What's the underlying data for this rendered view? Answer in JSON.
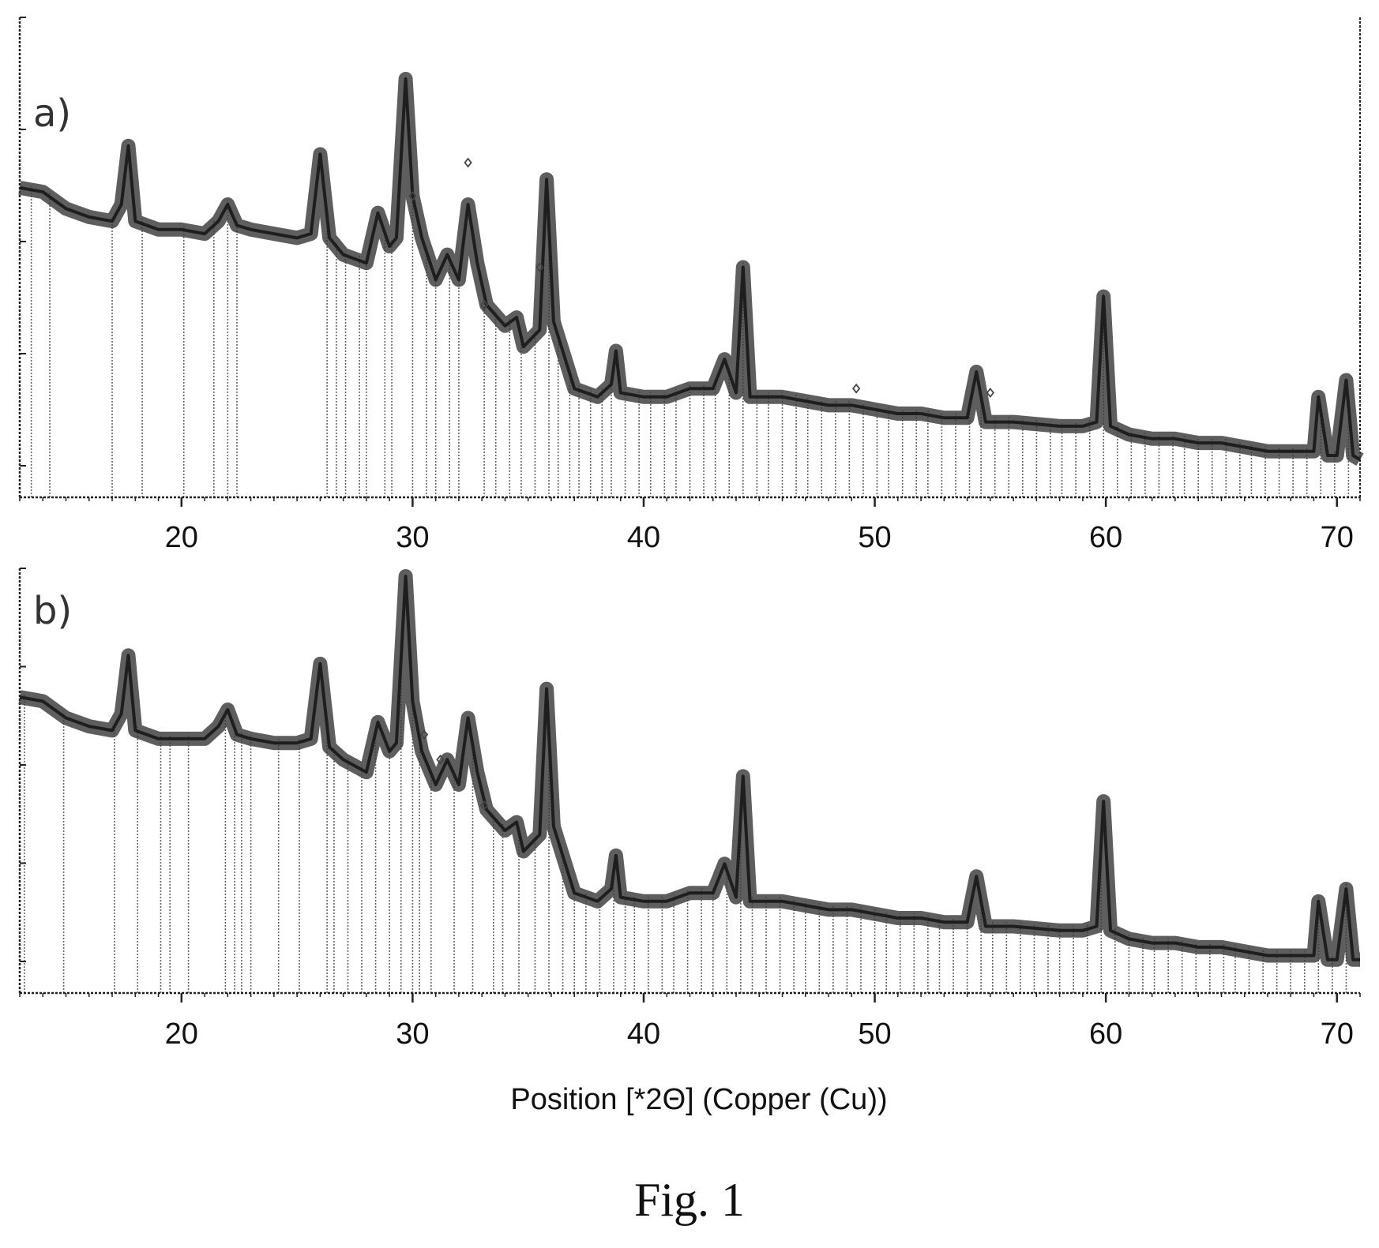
{
  "figure": {
    "caption": "Fig. 1",
    "xlabel": "Position [*2Θ] (Copper (Cu))",
    "colors": {
      "trace": "#3a3a3a",
      "ref_line": "#666666",
      "axis": "#222222",
      "marker": "#444444"
    }
  },
  "chart_data": [
    {
      "type": "line",
      "panel_label": "a)",
      "xlabel": "",
      "ylabel": "",
      "xlim": [
        13,
        71
      ],
      "ylim": [
        0,
        100
      ],
      "xticks": [
        20,
        30,
        40,
        50,
        60,
        70
      ],
      "tick_labels": [
        "20",
        "30",
        "40",
        "50",
        "60",
        "70"
      ],
      "grid": false,
      "series": [
        {
          "points": [
            [
              13.0,
              74
            ],
            [
              14.0,
              73
            ],
            [
              15.0,
              69
            ],
            [
              16.0,
              67
            ],
            [
              17.0,
              66
            ],
            [
              17.4,
              70
            ],
            [
              17.7,
              84
            ],
            [
              18.0,
              66
            ],
            [
              19.0,
              64
            ],
            [
              20.0,
              64
            ],
            [
              21.0,
              63
            ],
            [
              21.6,
              66
            ],
            [
              22.0,
              70
            ],
            [
              22.4,
              65
            ],
            [
              23.0,
              64
            ],
            [
              24.0,
              63
            ],
            [
              25.0,
              62
            ],
            [
              25.6,
              63
            ],
            [
              26.0,
              82
            ],
            [
              26.4,
              62
            ],
            [
              27.0,
              58
            ],
            [
              28.0,
              56
            ],
            [
              28.5,
              68
            ],
            [
              29.0,
              60
            ],
            [
              29.3,
              62
            ],
            [
              29.7,
              100
            ],
            [
              30.0,
              72
            ],
            [
              30.4,
              62
            ],
            [
              31.0,
              52
            ],
            [
              31.5,
              58
            ],
            [
              32.0,
              52
            ],
            [
              32.4,
              70
            ],
            [
              32.8,
              56
            ],
            [
              33.2,
              46
            ],
            [
              34.0,
              41
            ],
            [
              34.5,
              43
            ],
            [
              34.8,
              36
            ],
            [
              35.5,
              40
            ],
            [
              35.8,
              76
            ],
            [
              36.1,
              42
            ],
            [
              37.0,
              26
            ],
            [
              38.0,
              24
            ],
            [
              38.6,
              27
            ],
            [
              38.8,
              35
            ],
            [
              39.0,
              25
            ],
            [
              40.0,
              24
            ],
            [
              41.0,
              24
            ],
            [
              42.0,
              26
            ],
            [
              43.0,
              26
            ],
            [
              43.5,
              33
            ],
            [
              44.0,
              25
            ],
            [
              44.3,
              55
            ],
            [
              44.6,
              24
            ],
            [
              45.0,
              24
            ],
            [
              46.0,
              24
            ],
            [
              47.0,
              23
            ],
            [
              48.0,
              22
            ],
            [
              49.0,
              22
            ],
            [
              50.0,
              21
            ],
            [
              51.0,
              20
            ],
            [
              52.0,
              20
            ],
            [
              53.0,
              19
            ],
            [
              54.0,
              19
            ],
            [
              54.4,
              30
            ],
            [
              54.8,
              18
            ],
            [
              56.0,
              18
            ],
            [
              58.0,
              17
            ],
            [
              59.0,
              17
            ],
            [
              59.6,
              18
            ],
            [
              59.9,
              48
            ],
            [
              60.2,
              17
            ],
            [
              61.0,
              15
            ],
            [
              62.0,
              14
            ],
            [
              63.0,
              14
            ],
            [
              64.0,
              13
            ],
            [
              65.0,
              13
            ],
            [
              66.0,
              12
            ],
            [
              67.0,
              11
            ],
            [
              68.0,
              11
            ],
            [
              69.0,
              11
            ],
            [
              69.2,
              24
            ],
            [
              69.6,
              10
            ],
            [
              70.0,
              10
            ],
            [
              70.4,
              28
            ],
            [
              70.7,
              10
            ],
            [
              71.0,
              9
            ]
          ]
        }
      ],
      "reference_lines": [
        13.5,
        14.3,
        17.0,
        18.3,
        20.1,
        21.4,
        22.0,
        22.4,
        26.3,
        26.7,
        27.1,
        27.7,
        28.0,
        28.8,
        29.1,
        30.0,
        30.6,
        31.0,
        31.6,
        32.0,
        33.1,
        33.6,
        34.2,
        34.7,
        35.3,
        35.9,
        36.3,
        36.8,
        37.2,
        37.7,
        38.2,
        38.6,
        39.2,
        39.8,
        40.3,
        40.9,
        41.4,
        42.0,
        42.6,
        43.1,
        43.7,
        44.3,
        44.9,
        45.4,
        46.0,
        46.6,
        47.1,
        47.7,
        48.3,
        48.9,
        49.5,
        50.1,
        50.6,
        51.2,
        51.8,
        52.3,
        52.9,
        53.5,
        54.1,
        54.6,
        55.2,
        55.8,
        56.4,
        57.0,
        57.6,
        58.1,
        58.7,
        59.3,
        59.9,
        60.5,
        61.1,
        61.7,
        62.3,
        62.9,
        63.4,
        64.0,
        64.6,
        65.2,
        65.8,
        66.3,
        66.9,
        67.5,
        68.1,
        68.7,
        69.3,
        69.9,
        70.5
      ],
      "markers": [
        [
          32.4,
          80
        ],
        [
          30.0,
          72
        ],
        [
          35.5,
          55
        ],
        [
          33.1,
          46
        ],
        [
          49.2,
          26
        ],
        [
          55.0,
          25
        ]
      ]
    },
    {
      "type": "line",
      "panel_label": "b)",
      "xlabel": "",
      "ylabel": "",
      "xlim": [
        13,
        71
      ],
      "ylim": [
        0,
        100
      ],
      "xticks": [
        20,
        30,
        40,
        50,
        60,
        70
      ],
      "tick_labels": [
        "20",
        "30",
        "40",
        "50",
        "60",
        "70"
      ],
      "grid": false,
      "series": [
        {
          "points": [
            [
              13.0,
              71
            ],
            [
              14.0,
              70
            ],
            [
              15.0,
              66
            ],
            [
              16.0,
              64
            ],
            [
              17.0,
              63
            ],
            [
              17.4,
              67
            ],
            [
              17.7,
              81
            ],
            [
              18.0,
              63
            ],
            [
              19.0,
              61
            ],
            [
              20.0,
              61
            ],
            [
              21.0,
              61
            ],
            [
              21.6,
              64
            ],
            [
              22.0,
              68
            ],
            [
              22.4,
              62
            ],
            [
              23.0,
              61
            ],
            [
              24.0,
              60
            ],
            [
              25.0,
              60
            ],
            [
              25.6,
              61
            ],
            [
              26.0,
              79
            ],
            [
              26.4,
              59
            ],
            [
              27.0,
              56
            ],
            [
              28.0,
              53
            ],
            [
              28.5,
              65
            ],
            [
              29.0,
              58
            ],
            [
              29.3,
              60
            ],
            [
              29.7,
              100
            ],
            [
              30.0,
              70
            ],
            [
              30.4,
              58
            ],
            [
              31.0,
              50
            ],
            [
              31.5,
              56
            ],
            [
              32.0,
              50
            ],
            [
              32.4,
              66
            ],
            [
              32.8,
              53
            ],
            [
              33.2,
              44
            ],
            [
              34.0,
              39
            ],
            [
              34.5,
              41
            ],
            [
              34.8,
              34
            ],
            [
              35.5,
              38
            ],
            [
              35.8,
              73
            ],
            [
              36.1,
              40
            ],
            [
              37.0,
              24
            ],
            [
              38.0,
              22
            ],
            [
              38.6,
              25
            ],
            [
              38.8,
              33
            ],
            [
              39.0,
              23
            ],
            [
              40.0,
              22
            ],
            [
              41.0,
              22
            ],
            [
              42.0,
              24
            ],
            [
              43.0,
              24
            ],
            [
              43.5,
              31
            ],
            [
              44.0,
              23
            ],
            [
              44.3,
              52
            ],
            [
              44.6,
              22
            ],
            [
              45.0,
              22
            ],
            [
              46.0,
              22
            ],
            [
              47.0,
              21
            ],
            [
              48.0,
              20
            ],
            [
              49.0,
              20
            ],
            [
              50.0,
              19
            ],
            [
              51.0,
              18
            ],
            [
              52.0,
              18
            ],
            [
              53.0,
              17
            ],
            [
              54.0,
              17
            ],
            [
              54.4,
              28
            ],
            [
              54.8,
              16
            ],
            [
              56.0,
              16
            ],
            [
              58.0,
              15
            ],
            [
              59.0,
              15
            ],
            [
              59.6,
              16
            ],
            [
              59.9,
              46
            ],
            [
              60.2,
              15
            ],
            [
              61.0,
              13
            ],
            [
              62.0,
              12
            ],
            [
              63.0,
              12
            ],
            [
              64.0,
              11
            ],
            [
              65.0,
              11
            ],
            [
              66.0,
              10
            ],
            [
              67.0,
              9
            ],
            [
              68.0,
              9
            ],
            [
              69.0,
              9
            ],
            [
              69.2,
              22
            ],
            [
              69.6,
              8
            ],
            [
              70.0,
              8
            ],
            [
              70.4,
              25
            ],
            [
              70.7,
              8
            ],
            [
              71.0,
              8
            ]
          ]
        }
      ],
      "reference_lines": [
        13.2,
        14.9,
        17.1,
        18.1,
        19.1,
        19.5,
        20.3,
        21.9,
        22.3,
        22.6,
        23.0,
        24.2,
        25.1,
        26.3,
        26.6,
        27.2,
        27.8,
        28.4,
        29.0,
        29.5,
        30.0,
        30.3,
        30.8,
        31.8,
        32.6,
        33.5,
        33.9,
        34.6,
        35.3,
        35.9,
        36.5,
        37.0,
        37.5,
        38.1,
        38.7,
        39.2,
        39.6,
        40.2,
        40.8,
        41.3,
        41.9,
        42.5,
        43.0,
        43.6,
        44.2,
        44.7,
        45.3,
        45.9,
        46.5,
        47.0,
        47.6,
        48.2,
        48.8,
        49.4,
        50.0,
        50.5,
        51.1,
        51.7,
        52.3,
        52.8,
        53.4,
        54.0,
        54.6,
        55.1,
        55.7,
        56.3,
        56.9,
        57.5,
        58.0,
        58.6,
        59.2,
        59.8,
        60.4,
        61.0,
        61.6,
        62.1,
        62.7,
        63.3,
        63.9,
        64.5,
        65.1,
        65.6,
        66.2,
        66.8,
        67.4,
        68.0,
        68.6,
        69.2,
        69.8,
        70.4
      ],
      "markers": [
        [
          30.5,
          62
        ],
        [
          31.2,
          56
        ],
        [
          33.1,
          45
        ]
      ]
    }
  ]
}
